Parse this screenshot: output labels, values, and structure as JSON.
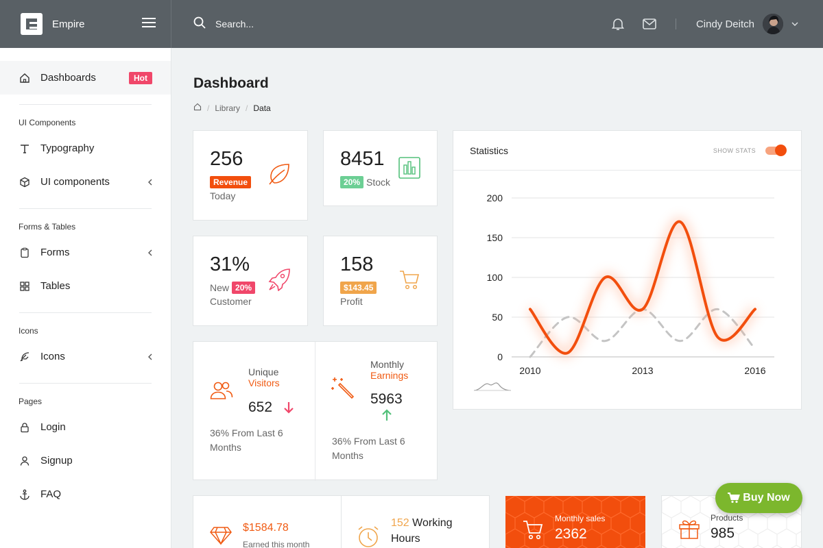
{
  "brand": {
    "name": "Empire"
  },
  "search": {
    "placeholder": "Search..."
  },
  "user": {
    "name": "Cindy Deitch"
  },
  "sidebar": {
    "dashboards": {
      "label": "Dashboards",
      "badge": "Hot"
    },
    "sections": [
      {
        "title": "UI Components",
        "items": [
          {
            "label": "Typography"
          },
          {
            "label": "UI components"
          }
        ]
      },
      {
        "title": "Forms & Tables",
        "items": [
          {
            "label": "Forms"
          },
          {
            "label": "Tables"
          }
        ]
      },
      {
        "title": "Icons",
        "items": [
          {
            "label": "Icons"
          }
        ]
      },
      {
        "title": "Pages",
        "items": [
          {
            "label": "Login"
          },
          {
            "label": "Signup"
          },
          {
            "label": "FAQ"
          }
        ]
      }
    ]
  },
  "page": {
    "title": "Dashboard",
    "breadcrumb": [
      "Library",
      "Data"
    ]
  },
  "cards": {
    "revenue": {
      "value": "256",
      "tag": "Revenue",
      "sub": "Today"
    },
    "stock": {
      "value": "8451",
      "tag": "20%",
      "sub": "Stock"
    },
    "customer": {
      "value": "31%",
      "pre": "New",
      "tag": "20%",
      "sub": "Customer"
    },
    "profit": {
      "value": "158",
      "tag": "$143.45",
      "sub": "Profit"
    },
    "visitors": {
      "line1": "Unique",
      "line2": "Visitors",
      "value": "652",
      "note": "36% From Last 6 Months"
    },
    "earnings": {
      "line1": "Monthly",
      "line2": "Earnings",
      "value": "5963",
      "note": "36% From Last 6 Months"
    },
    "earned": {
      "value": "$1584.78",
      "sub": "Earned this month"
    },
    "hours": {
      "value": "152",
      "label": "Working Hours"
    },
    "sales": {
      "label": "Monthly sales",
      "value": "2362"
    },
    "products": {
      "label": "Products",
      "value": "985"
    }
  },
  "stats": {
    "title": "Statistics",
    "toggle_label": "SHOW STATS"
  },
  "chart_data": {
    "type": "line",
    "x": [
      2010,
      2011,
      2012,
      2013,
      2014,
      2015,
      2016
    ],
    "xticks": [
      "2010",
      "2013",
      "2016"
    ],
    "yticks": [
      "0",
      "50",
      "100",
      "150",
      "200"
    ],
    "ylim": [
      0,
      200
    ],
    "series": [
      {
        "color": "#f24e0d",
        "dashed": false,
        "values": [
          60,
          5,
          100,
          60,
          170,
          25,
          60
        ]
      },
      {
        "color": "#c4c4c4",
        "dashed": true,
        "values": [
          0,
          50,
          20,
          60,
          20,
          60,
          10
        ]
      }
    ]
  },
  "cta": {
    "label": "Buy Now"
  },
  "colors": {
    "accent": "#f24e0d",
    "success": "#52c07a",
    "danger": "#f0476a",
    "warning": "#f0a54b",
    "cta": "#7cb72d"
  }
}
